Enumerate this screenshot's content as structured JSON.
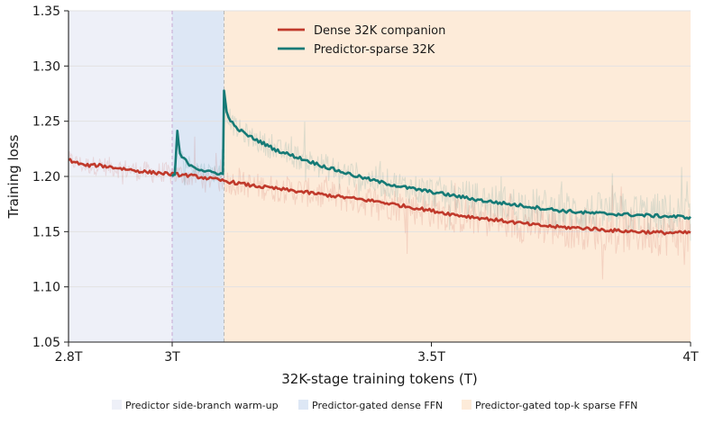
{
  "chart_data": {
    "type": "line",
    "title": "",
    "xlabel": "32K-stage training tokens (T)",
    "ylabel": "Training loss",
    "xlim": [
      2.8,
      4.0
    ],
    "ylim": [
      1.05,
      1.35
    ],
    "x_ticks": [
      {
        "value": 2.8,
        "label": "2.8T"
      },
      {
        "value": 3.0,
        "label": "3T"
      },
      {
        "value": 3.5,
        "label": "3.5T"
      },
      {
        "value": 4.0,
        "label": "4T"
      }
    ],
    "y_ticks": [
      {
        "value": 1.05,
        "label": "1.05"
      },
      {
        "value": 1.1,
        "label": "1.10"
      },
      {
        "value": 1.15,
        "label": "1.15"
      },
      {
        "value": 1.2,
        "label": "1.20"
      },
      {
        "value": 1.25,
        "label": "1.25"
      },
      {
        "value": 1.3,
        "label": "1.30"
      },
      {
        "value": 1.35,
        "label": "1.35"
      }
    ],
    "grid": true,
    "legend_position": "top-center",
    "series": [
      {
        "name": "Dense 32K companion",
        "color": "#c0392b",
        "points": [
          [
            2.8,
            1.215
          ],
          [
            2.83,
            1.21
          ],
          [
            2.86,
            1.21
          ],
          [
            2.89,
            1.208
          ],
          [
            2.92,
            1.206
          ],
          [
            2.95,
            1.204
          ],
          [
            2.98,
            1.203
          ],
          [
            3.0,
            1.202
          ],
          [
            3.03,
            1.201
          ],
          [
            3.06,
            1.199
          ],
          [
            3.1,
            1.196
          ],
          [
            3.15,
            1.192
          ],
          [
            3.2,
            1.189
          ],
          [
            3.25,
            1.186
          ],
          [
            3.3,
            1.183
          ],
          [
            3.35,
            1.18
          ],
          [
            3.4,
            1.177
          ],
          [
            3.45,
            1.173
          ],
          [
            3.5,
            1.169
          ],
          [
            3.55,
            1.165
          ],
          [
            3.6,
            1.162
          ],
          [
            3.65,
            1.159
          ],
          [
            3.7,
            1.156
          ],
          [
            3.75,
            1.154
          ],
          [
            3.8,
            1.153
          ],
          [
            3.85,
            1.151
          ],
          [
            3.9,
            1.15
          ],
          [
            3.95,
            1.149
          ],
          [
            4.0,
            1.149
          ]
        ]
      },
      {
        "name": "Predictor-sparse 32K",
        "color": "#157a76",
        "points": [
          [
            3.0,
            1.2
          ],
          [
            3.005,
            1.202
          ],
          [
            3.01,
            1.24
          ],
          [
            3.015,
            1.22
          ],
          [
            3.03,
            1.212
          ],
          [
            3.05,
            1.207
          ],
          [
            3.07,
            1.204
          ],
          [
            3.09,
            1.203
          ],
          [
            3.098,
            1.202
          ],
          [
            3.1,
            1.278
          ],
          [
            3.105,
            1.258
          ],
          [
            3.12,
            1.245
          ],
          [
            3.15,
            1.236
          ],
          [
            3.18,
            1.229
          ],
          [
            3.2,
            1.224
          ],
          [
            3.25,
            1.216
          ],
          [
            3.3,
            1.208
          ],
          [
            3.35,
            1.201
          ],
          [
            3.4,
            1.195
          ],
          [
            3.45,
            1.19
          ],
          [
            3.5,
            1.186
          ],
          [
            3.55,
            1.182
          ],
          [
            3.6,
            1.178
          ],
          [
            3.65,
            1.175
          ],
          [
            3.7,
            1.172
          ],
          [
            3.75,
            1.169
          ],
          [
            3.8,
            1.167
          ],
          [
            3.85,
            1.166
          ],
          [
            3.9,
            1.165
          ],
          [
            3.95,
            1.164
          ],
          [
            4.0,
            1.163
          ]
        ]
      }
    ],
    "phases": [
      {
        "label": "Predictor side-branch warm-up",
        "x0": 2.8,
        "x1": 3.0,
        "color": "#eef0f8"
      },
      {
        "label": "Predictor-gated dense FFN",
        "x0": 3.0,
        "x1": 3.1,
        "color": "#dde7f5"
      },
      {
        "label": "Predictor-gated top-k sparse FFN",
        "x0": 3.1,
        "x1": 4.0,
        "color": "#fdebd9"
      }
    ],
    "phase_boundaries": [
      3.0,
      3.1
    ]
  }
}
